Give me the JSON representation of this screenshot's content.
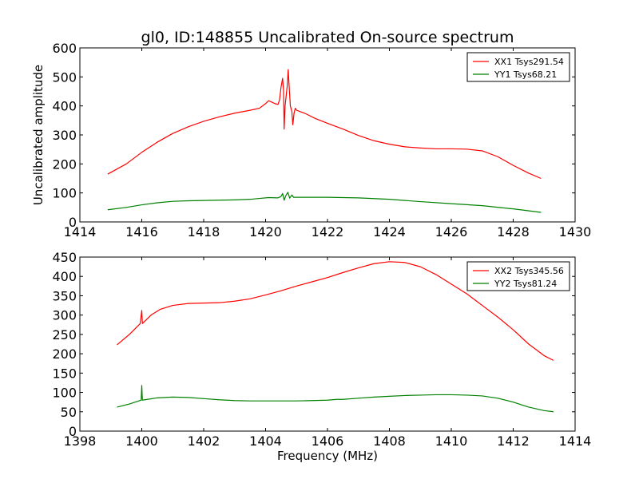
{
  "title": "gl0, ID:148855 Uncalibrated On-source spectrum",
  "chart_data": [
    {
      "type": "line",
      "ylabel": "Uncalibrated amplitude",
      "xlabel": "",
      "xlim": [
        1414,
        1430
      ],
      "ylim": [
        0,
        600
      ],
      "xticks": [
        1414,
        1416,
        1418,
        1420,
        1422,
        1424,
        1426,
        1428,
        1430
      ],
      "yticks": [
        0,
        100,
        200,
        300,
        400,
        500,
        600
      ],
      "legend": "top-right",
      "series": [
        {
          "name": "XX1 Tsys291.54",
          "color": "#ff0000",
          "points": [
            [
              1414.9,
              165
            ],
            [
              1415.5,
              200
            ],
            [
              1416,
              240
            ],
            [
              1416.5,
              275
            ],
            [
              1417,
              305
            ],
            [
              1417.5,
              328
            ],
            [
              1418,
              347
            ],
            [
              1418.5,
              362
            ],
            [
              1419,
              375
            ],
            [
              1419.5,
              385
            ],
            [
              1419.8,
              392
            ],
            [
              1420.0,
              408
            ],
            [
              1420.1,
              418
            ],
            [
              1420.2,
              413
            ],
            [
              1420.3,
              408
            ],
            [
              1420.4,
              405
            ],
            [
              1420.45,
              420
            ],
            [
              1420.5,
              465
            ],
            [
              1420.55,
              495
            ],
            [
              1420.58,
              455
            ],
            [
              1420.6,
              320
            ],
            [
              1420.63,
              400
            ],
            [
              1420.66,
              430
            ],
            [
              1420.7,
              470
            ],
            [
              1420.73,
              525
            ],
            [
              1420.76,
              470
            ],
            [
              1420.8,
              400
            ],
            [
              1420.85,
              380
            ],
            [
              1420.88,
              335
            ],
            [
              1420.92,
              375
            ],
            [
              1420.96,
              392
            ],
            [
              1421.0,
              385
            ],
            [
              1421.3,
              373
            ],
            [
              1421.6,
              357
            ],
            [
              1422,
              340
            ],
            [
              1422.5,
              320
            ],
            [
              1423,
              298
            ],
            [
              1423.5,
              280
            ],
            [
              1424,
              268
            ],
            [
              1424.5,
              259
            ],
            [
              1425,
              255
            ],
            [
              1425.5,
              252
            ],
            [
              1426,
              252
            ],
            [
              1426.5,
              251
            ],
            [
              1427,
              245
            ],
            [
              1427.5,
              225
            ],
            [
              1428,
              195
            ],
            [
              1428.5,
              168
            ],
            [
              1428.9,
              150
            ]
          ]
        },
        {
          "name": "YY1 Tsys68.21",
          "color": "#008000",
          "points": [
            [
              1414.9,
              42
            ],
            [
              1415.5,
              50
            ],
            [
              1416,
              59
            ],
            [
              1416.5,
              66
            ],
            [
              1417,
              71
            ],
            [
              1417.5,
              73
            ],
            [
              1418,
              74
            ],
            [
              1418.5,
              75
            ],
            [
              1419,
              76
            ],
            [
              1419.5,
              78
            ],
            [
              1419.8,
              81
            ],
            [
              1420.1,
              84
            ],
            [
              1420.4,
              83
            ],
            [
              1420.5,
              88
            ],
            [
              1420.55,
              98
            ],
            [
              1420.6,
              75
            ],
            [
              1420.65,
              90
            ],
            [
              1420.72,
              102
            ],
            [
              1420.78,
              82
            ],
            [
              1420.85,
              93
            ],
            [
              1420.9,
              85
            ],
            [
              1421,
              85
            ],
            [
              1422,
              85
            ],
            [
              1423,
              83
            ],
            [
              1424,
              78
            ],
            [
              1425,
              70
            ],
            [
              1426,
              63
            ],
            [
              1427,
              56
            ],
            [
              1428,
              45
            ],
            [
              1428.9,
              33
            ]
          ]
        }
      ]
    },
    {
      "type": "line",
      "ylabel": "",
      "xlabel": "Frequency (MHz)",
      "xlim": [
        1398,
        1414
      ],
      "ylim": [
        0,
        450
      ],
      "xticks": [
        1398,
        1400,
        1402,
        1404,
        1406,
        1408,
        1410,
        1412,
        1414
      ],
      "yticks": [
        0,
        50,
        100,
        150,
        200,
        250,
        300,
        350,
        400,
        450
      ],
      "legend": "top-right",
      "series": [
        {
          "name": "XX2 Tsys345.56",
          "color": "#ff0000",
          "points": [
            [
              1399.2,
              223
            ],
            [
              1399.6,
              250
            ],
            [
              1399.95,
              278
            ],
            [
              1400.0,
              312
            ],
            [
              1400.02,
              278
            ],
            [
              1400.3,
              300
            ],
            [
              1400.6,
              315
            ],
            [
              1401,
              325
            ],
            [
              1401.5,
              330
            ],
            [
              1402,
              331
            ],
            [
              1402.5,
              332
            ],
            [
              1403,
              336
            ],
            [
              1403.5,
              342
            ],
            [
              1404,
              352
            ],
            [
              1404.5,
              363
            ],
            [
              1405,
              375
            ],
            [
              1405.5,
              386
            ],
            [
              1406,
              397
            ],
            [
              1406.5,
              410
            ],
            [
              1407,
              422
            ],
            [
              1407.5,
              433
            ],
            [
              1408,
              438
            ],
            [
              1408.5,
              436
            ],
            [
              1409,
              425
            ],
            [
              1409.5,
              405
            ],
            [
              1410,
              380
            ],
            [
              1410.5,
              355
            ],
            [
              1411,
              325
            ],
            [
              1411.5,
              295
            ],
            [
              1412,
              262
            ],
            [
              1412.5,
              225
            ],
            [
              1413,
              195
            ],
            [
              1413.3,
              183
            ]
          ]
        },
        {
          "name": "YY2 Tsys81.24",
          "color": "#008000",
          "points": [
            [
              1399.2,
              62
            ],
            [
              1399.6,
              70
            ],
            [
              1399.98,
              80
            ],
            [
              1400.0,
              118
            ],
            [
              1400.02,
              80
            ],
            [
              1400.5,
              86
            ],
            [
              1401,
              88
            ],
            [
              1401.5,
              87
            ],
            [
              1402,
              84
            ],
            [
              1402.5,
              81
            ],
            [
              1403,
              79
            ],
            [
              1403.5,
              78
            ],
            [
              1404,
              78
            ],
            [
              1404.5,
              78
            ],
            [
              1405,
              78
            ],
            [
              1405.5,
              79
            ],
            [
              1406,
              80
            ],
            [
              1406.3,
              82
            ],
            [
              1406.5,
              82
            ],
            [
              1407,
              85
            ],
            [
              1407.5,
              88
            ],
            [
              1408,
              90
            ],
            [
              1408.5,
              92
            ],
            [
              1409,
              93
            ],
            [
              1409.5,
              94
            ],
            [
              1410,
              94
            ],
            [
              1410.5,
              93
            ],
            [
              1411,
              91
            ],
            [
              1411.5,
              85
            ],
            [
              1412,
              75
            ],
            [
              1412.5,
              62
            ],
            [
              1413,
              53
            ],
            [
              1413.3,
              50
            ]
          ]
        }
      ]
    }
  ]
}
